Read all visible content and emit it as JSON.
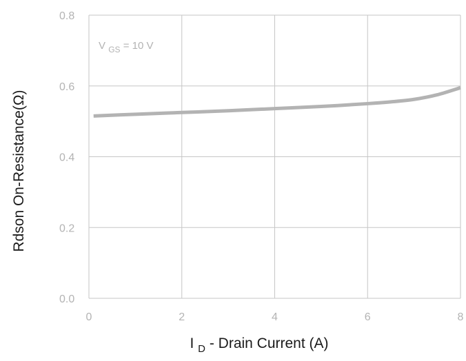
{
  "chart_data": {
    "type": "line",
    "title": "",
    "xlabel": {
      "main": "I",
      "sub": "D",
      "rest": "- Drain Current (A)"
    },
    "ylabel": "Rdson On-Resistance(Ω)",
    "xlim": [
      0,
      8
    ],
    "ylim": [
      0,
      0.8
    ],
    "xticks": [
      0,
      2,
      4,
      6,
      8
    ],
    "yticks": [
      0,
      0.2,
      0.4,
      0.6,
      0.8
    ],
    "xtick_labels": [
      "0",
      "2",
      "4",
      "6",
      "8"
    ],
    "ytick_labels": [
      "0.0",
      "0.2",
      "0.4",
      "0.6",
      "0.8"
    ],
    "grid": true,
    "annotation": {
      "main": "V",
      "sub": "GS",
      "rest": " = 10 V"
    },
    "series": [
      {
        "x": [
          0.1,
          1,
          2,
          3,
          4,
          5,
          6,
          6.5,
          7,
          7.5,
          8
        ],
        "y": [
          0.515,
          0.52,
          0.525,
          0.53,
          0.536,
          0.542,
          0.55,
          0.555,
          0.562,
          0.575,
          0.595
        ],
        "color": "#b3b3b3"
      }
    ]
  }
}
